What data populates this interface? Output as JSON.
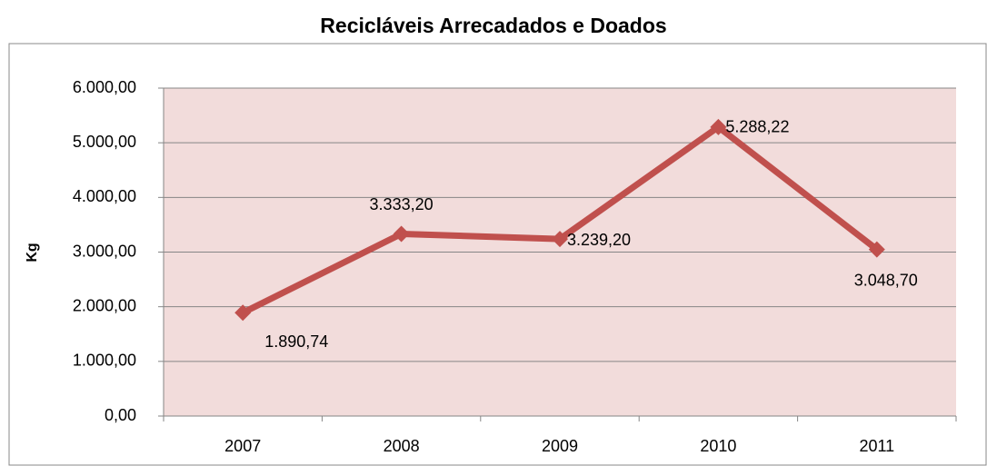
{
  "chart_data": {
    "type": "line",
    "title": "Recicláveis Arrecadados e Doados",
    "y_label": "Kg",
    "categories": [
      "2007",
      "2008",
      "2009",
      "2010",
      "2011"
    ],
    "series": [
      {
        "name": "Kg",
        "color": "#c0504d",
        "values": [
          1890.74,
          3333.2,
          3239.2,
          5288.22,
          3048.7
        ],
        "value_labels": [
          "1.890,74",
          "3.333,20",
          "3.239,20",
          "5.288,22",
          "3.048,70"
        ]
      }
    ],
    "ylim": [
      0,
      6000
    ],
    "yticks": [
      {
        "value": 0,
        "label": "0,00"
      },
      {
        "value": 1000,
        "label": "1.000,00"
      },
      {
        "value": 2000,
        "label": "2.000,00"
      },
      {
        "value": 3000,
        "label": "3.000,00"
      },
      {
        "value": 4000,
        "label": "4.000,00"
      },
      {
        "value": 5000,
        "label": "5.000,00"
      },
      {
        "value": 6000,
        "label": "6.000,00"
      }
    ],
    "grid": true
  }
}
